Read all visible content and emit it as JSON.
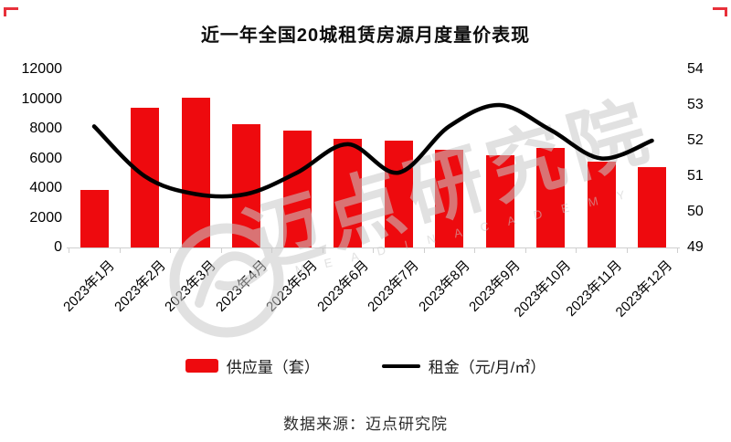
{
  "title": "近一年全国20城租赁房源月度量价表现",
  "chart_data": {
    "type": "bar+line combo",
    "categories": [
      "2023年1月",
      "2023年2月",
      "2023年3月",
      "2023年4月",
      "2023年5月",
      "2023年6月",
      "2023年7月",
      "2023年8月",
      "2023年9月",
      "2023年10月",
      "2023年11月",
      "2023年12月"
    ],
    "series": [
      {
        "name": "供应量（套）",
        "type": "bar",
        "axis": "left",
        "color": "#ee0a0e",
        "values": [
          3900,
          9400,
          10100,
          8300,
          7900,
          7300,
          7200,
          6600,
          6200,
          6700,
          5800,
          5400
        ]
      },
      {
        "name": "租金（元/月/㎡）",
        "type": "line",
        "axis": "right",
        "color": "#000000",
        "values": [
          52.4,
          51.0,
          50.5,
          50.5,
          51.1,
          51.9,
          51.1,
          52.4,
          53.0,
          52.3,
          51.5,
          52.0
        ]
      }
    ],
    "left_axis": {
      "title": "",
      "min": 0,
      "max": 12000,
      "ticks": [
        "0",
        "2000",
        "4000",
        "6000",
        "8000",
        "10000",
        "12000"
      ]
    },
    "right_axis": {
      "title": "",
      "min": 49,
      "max": 54,
      "ticks": [
        "49",
        "50",
        "51",
        "52",
        "53",
        "54"
      ]
    },
    "grid": "off",
    "legend_position": "bottom"
  },
  "legend": {
    "bar_label": "供应量（套）",
    "line_label": "租金（元/月/㎡）"
  },
  "watermark": {
    "text": "迈点研究院",
    "subtext": "M E A D I N   A C A D E M Y"
  },
  "footer": {
    "source": "数据来源：迈点研究院"
  },
  "colors": {
    "bar": "#ee0a0e",
    "line": "#000000",
    "axis": "#cfcfcf",
    "corner_marks": "#e8303a",
    "watermark": "#d6d6d6"
  }
}
